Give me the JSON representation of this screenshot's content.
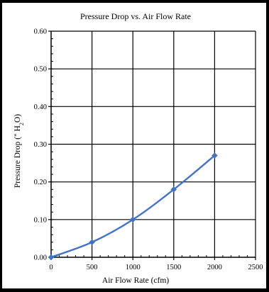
{
  "chart_data": {
    "type": "line",
    "title": "Pressure Drop vs. Air Flow Rate",
    "xlabel": "Air Flow Rate (cfm)",
    "ylabel_parts": [
      "Pressure Drop (\" H",
      "2",
      "O)"
    ],
    "xlim": [
      0,
      2500
    ],
    "ylim": [
      0,
      0.6
    ],
    "x_ticks": [
      0,
      500,
      1000,
      1500,
      2000,
      2500
    ],
    "x_tick_labels": [
      "0",
      "500",
      "1000",
      "1500",
      "2000",
      "2500"
    ],
    "y_ticks": [
      0,
      0.1,
      0.2,
      0.3,
      0.4,
      0.5,
      0.6
    ],
    "y_tick_labels": [
      "0.00",
      "0.10",
      "0.20",
      "0.30",
      "0.40",
      "0.50",
      "0.60"
    ],
    "grid": true,
    "series": [
      {
        "color": "#4472c4",
        "x": [
          0,
          500,
          1000,
          1500,
          2000
        ],
        "y": [
          0.0,
          0.04,
          0.1,
          0.18,
          0.27
        ]
      }
    ]
  }
}
